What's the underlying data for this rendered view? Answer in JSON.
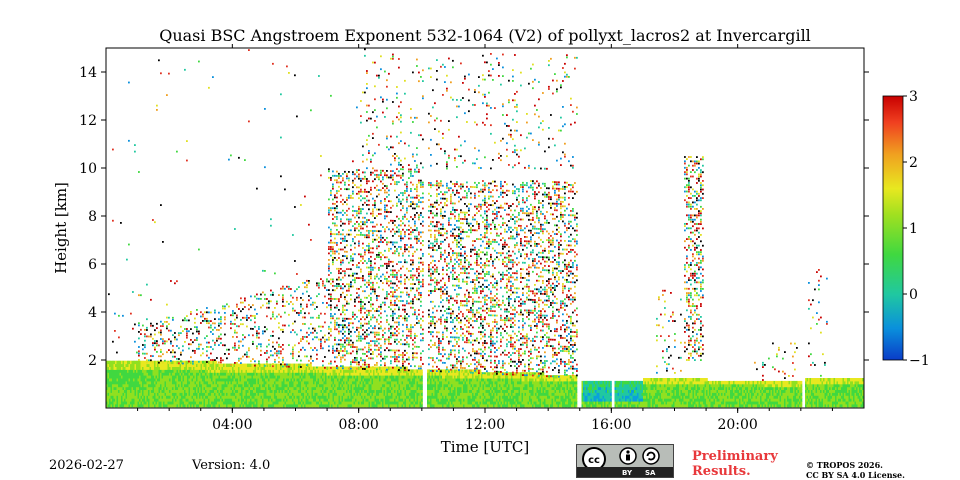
{
  "chart_data": {
    "type": "heatmap",
    "title": "Quasi BSC Angstroem Exponent 532-1064 (V2) of pollyxt_lacros2 at Invercargill",
    "xlabel": "Time [UTC]",
    "ylabel": "Height [km]",
    "xlim_hours": [
      0,
      24
    ],
    "ylim_km": [
      0,
      15
    ],
    "x_ticks": [
      {
        "value": 4,
        "label": "04:00"
      },
      {
        "value": 8,
        "label": "08:00"
      },
      {
        "value": 12,
        "label": "12:00"
      },
      {
        "value": 16,
        "label": "16:00"
      },
      {
        "value": 20,
        "label": "20:00"
      }
    ],
    "y_ticks": [
      {
        "value": 2,
        "label": "2"
      },
      {
        "value": 4,
        "label": "4"
      },
      {
        "value": 6,
        "label": "6"
      },
      {
        "value": 8,
        "label": "8"
      },
      {
        "value": 10,
        "label": "10"
      },
      {
        "value": 12,
        "label": "12"
      },
      {
        "value": 14,
        "label": "14"
      }
    ],
    "colorbar": {
      "min": -1,
      "max": 3,
      "ticks": [
        {
          "value": 3,
          "label": "3"
        },
        {
          "value": 2,
          "label": "2"
        },
        {
          "value": 1,
          "label": "1"
        },
        {
          "value": 0,
          "label": "0"
        },
        {
          "value": -1,
          "label": "−1"
        }
      ],
      "colors": [
        "#0a3cc8",
        "#0aa0dc",
        "#20c8a0",
        "#40d840",
        "#90e020",
        "#e8e820",
        "#f0a020",
        "#f04020",
        "#c80000"
      ]
    },
    "gaps_hours": [
      [
        10.02,
        10.15
      ],
      [
        14.9,
        15.05
      ],
      [
        16.0,
        16.1
      ],
      [
        22.0,
        22.1
      ]
    ],
    "regions": [
      {
        "name": "boundary-layer",
        "t_start": 0,
        "t_end": 24,
        "base_km": 0,
        "top_km": 1.9,
        "typical_value": 0.8
      },
      {
        "name": "low-value-layer",
        "t_start": 15.1,
        "t_end": 17.0,
        "base_km": 0.2,
        "top_km": 1.1,
        "typical_value": -0.3
      },
      {
        "name": "aerosol-noise-layer",
        "t_start": 1,
        "t_end": 15,
        "base_km": 1.9,
        "top_km": 10,
        "typical_value": 1.5
      },
      {
        "name": "cloud-column",
        "t_start": 18.4,
        "t_end": 18.8,
        "base_km": 2,
        "top_km": 10.5,
        "typical_value": 1.6
      }
    ]
  },
  "footer": {
    "date": "2026-02-27",
    "version": "Version: 4.0",
    "license_badge": {
      "by": "BY",
      "sa": "SA"
    },
    "preliminary_line1": "Preliminary",
    "preliminary_line2": "Results.",
    "copyright_line1": "© TROPOS 2026.",
    "copyright_line2": "CC BY SA 4.0 License."
  }
}
